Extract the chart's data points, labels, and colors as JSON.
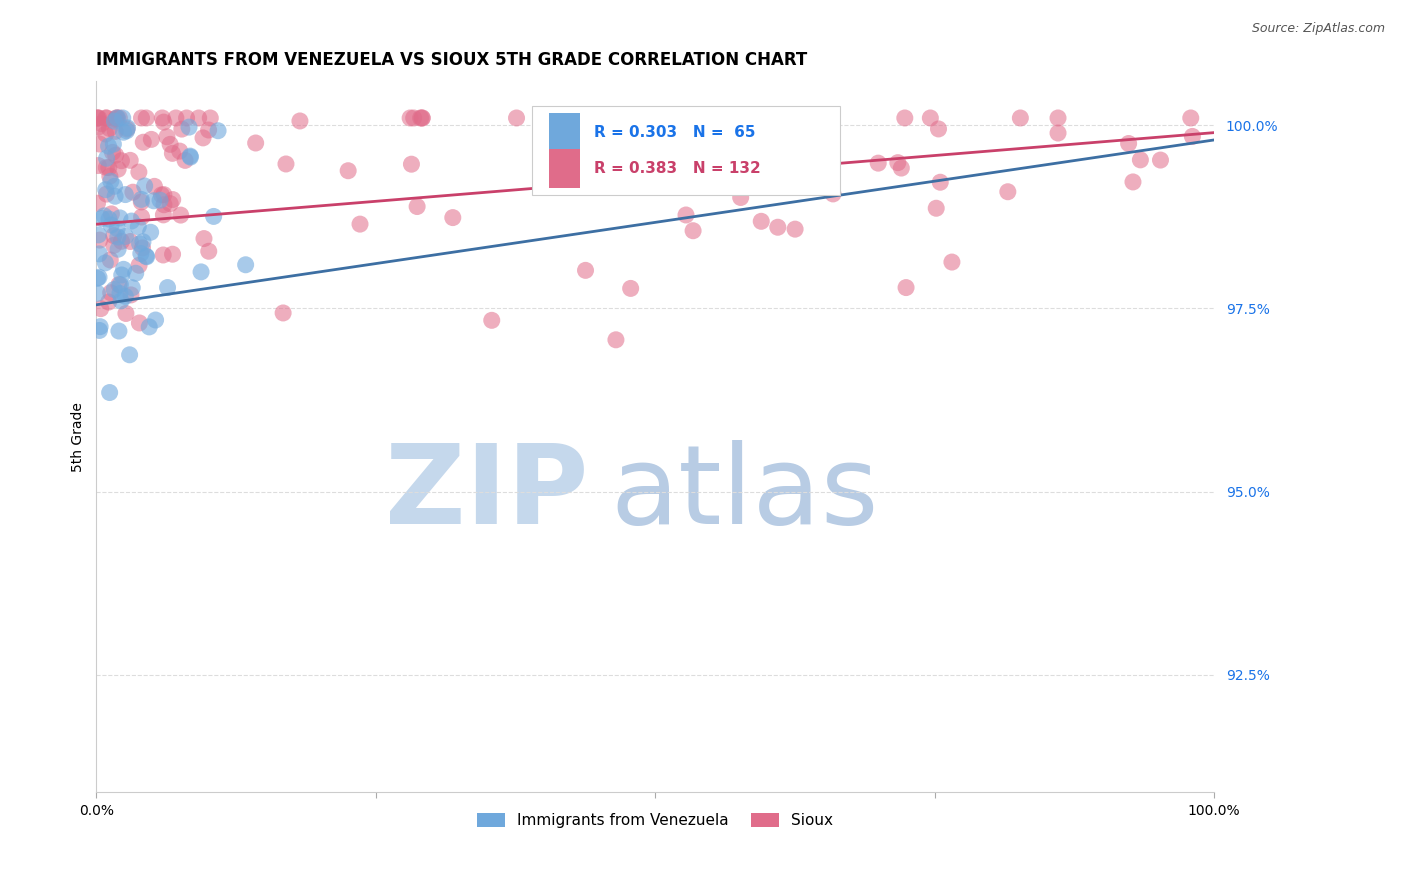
{
  "title": "IMMIGRANTS FROM VENEZUELA VS SIOUX 5TH GRADE CORRELATION CHART",
  "source": "Source: ZipAtlas.com",
  "ylabel": "5th Grade",
  "y_ticks": [
    0.925,
    0.95,
    0.975,
    1.0
  ],
  "y_tick_labels": [
    "92.5%",
    "95.0%",
    "97.5%",
    "100.0%"
  ],
  "xlim": [
    0.0,
    1.0
  ],
  "ylim": [
    0.909,
    1.006
  ],
  "blue_R": 0.303,
  "blue_N": 65,
  "pink_R": 0.383,
  "pink_N": 132,
  "blue_color": "#6fa8dc",
  "pink_color": "#e06c8a",
  "blue_line_color": "#3d6fa3",
  "pink_line_color": "#c9406a",
  "tick_color": "#1a73e8",
  "watermark_zip_color": "#c5d8ec",
  "watermark_atlas_color": "#b8cce4",
  "title_fontsize": 12,
  "axis_label_fontsize": 10,
  "tick_fontsize": 10
}
